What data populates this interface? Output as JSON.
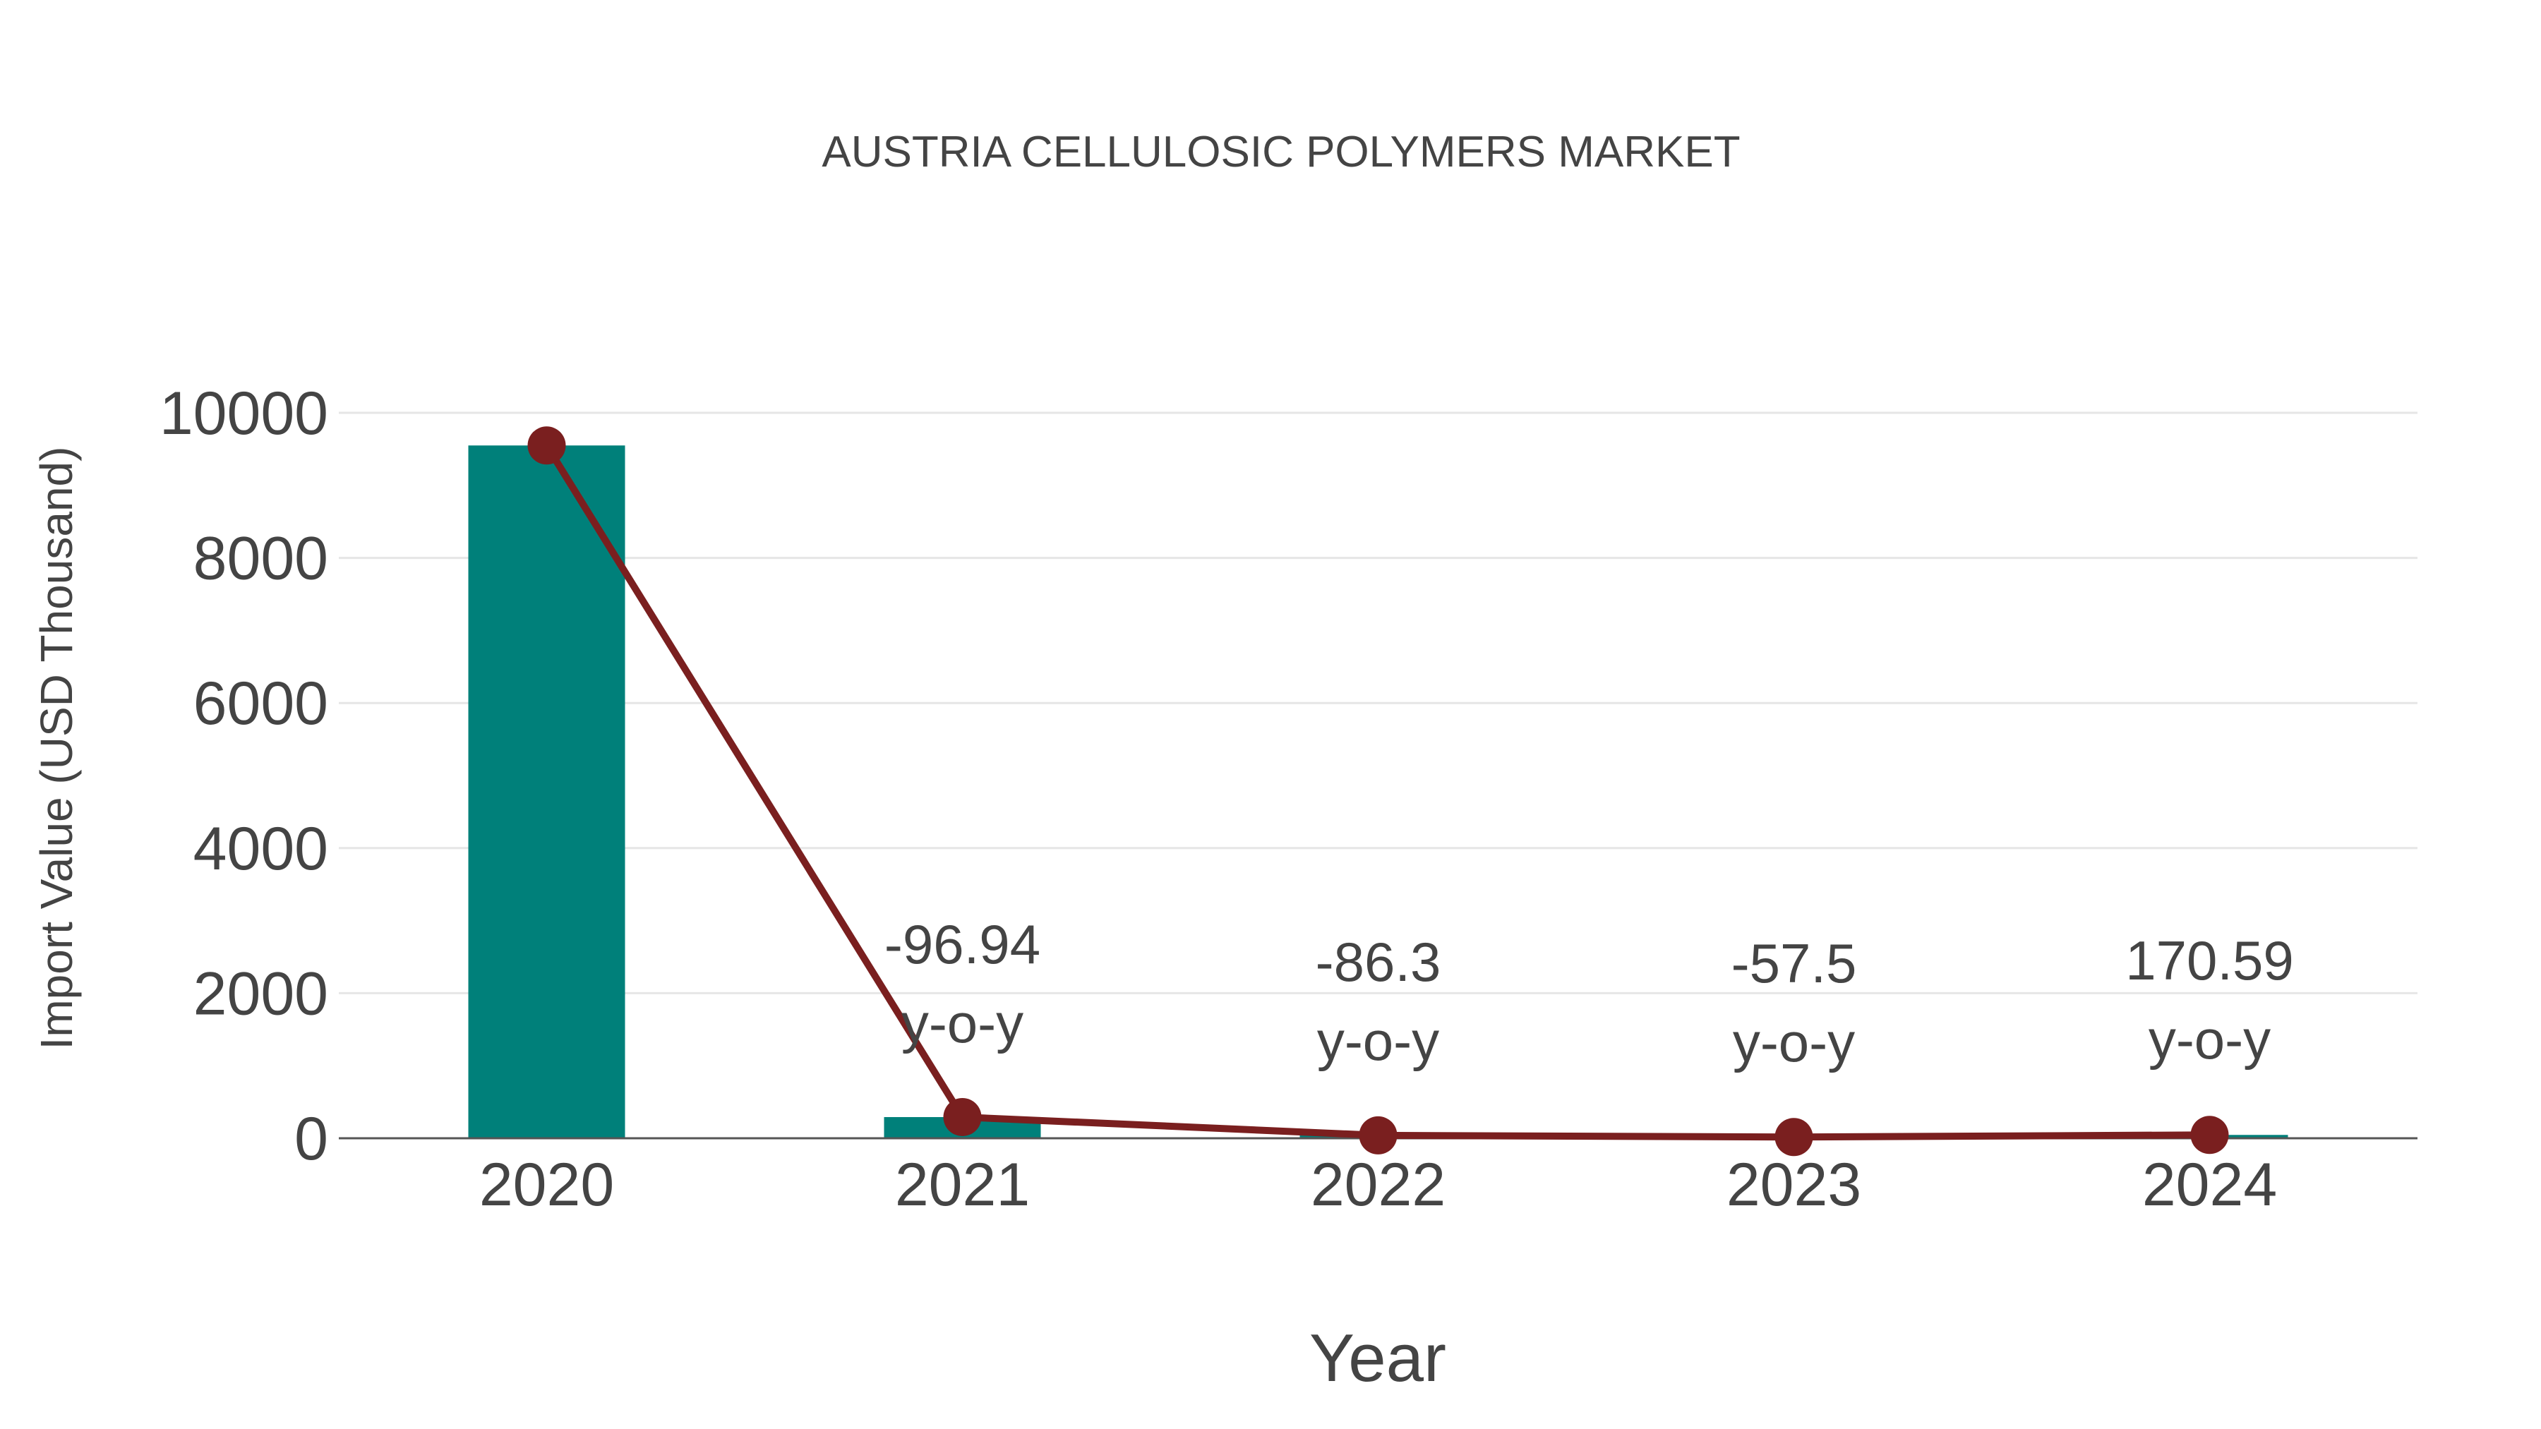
{
  "chart_data": {
    "type": "bar",
    "title": "AUSTRIA CELLULOSIC POLYMERS MARKET",
    "xlabel": "Year",
    "ylabel": "Import Value (USD Thousand)",
    "categories": [
      "2020",
      "2021",
      "2022",
      "2023",
      "2024"
    ],
    "series": [
      {
        "name": "Import Value",
        "type": "bar",
        "color": "#00807a",
        "values": [
          9550,
          292,
          40,
          17,
          46
        ]
      },
      {
        "name": "Trend",
        "type": "line",
        "color": "#7a1f1f",
        "values": [
          9550,
          292,
          40,
          17,
          46
        ]
      }
    ],
    "annotations": [
      {
        "category": "2021",
        "value": "-96.94",
        "suffix": "y-o-y"
      },
      {
        "category": "2022",
        "value": "-86.3",
        "suffix": "y-o-y"
      },
      {
        "category": "2023",
        "value": "-57.5",
        "suffix": "y-o-y"
      },
      {
        "category": "2024",
        "value": "170.59",
        "suffix": "y-o-y"
      }
    ],
    "yticks": [
      "0",
      "2000",
      "4000",
      "6000",
      "8000",
      "10000"
    ],
    "ylim": [
      0,
      10000
    ],
    "grid": true,
    "legend": false
  }
}
